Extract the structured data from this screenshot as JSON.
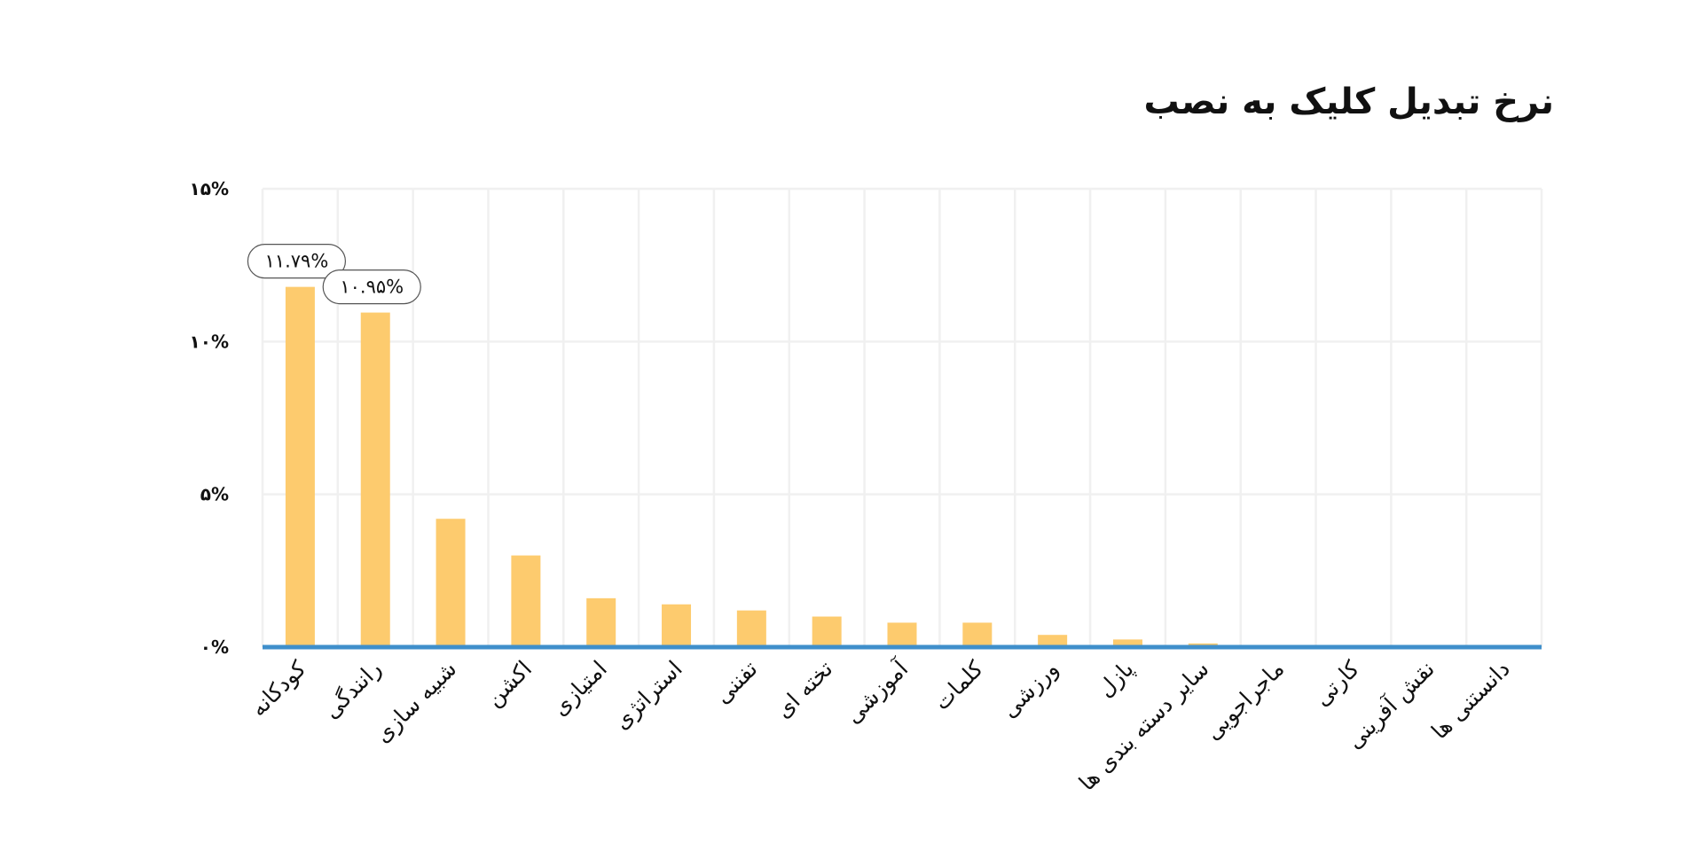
{
  "chart_data": {
    "type": "bar",
    "title": "نرخ تبدیل کلیک به نصب",
    "xlabel": "",
    "ylabel": "",
    "ylim": [
      0,
      15
    ],
    "yticks": [
      0,
      5,
      10,
      15
    ],
    "ytick_labels": [
      "۰%",
      "۵%",
      "۱۰%",
      "۱۵%"
    ],
    "grid": true,
    "legend": "none",
    "categories": [
      "کودکانه",
      "رانندگی",
      "شبیه سازی",
      "اکشن",
      "امتیازی",
      "استراتژی",
      "تفننی",
      "تخته ای",
      "آموزشی",
      "کلمات",
      "ورزشی",
      "پازل",
      "سایر دسته بندی ها",
      "ماجراجویی",
      "کارتی",
      "نقش آفرینی",
      "دانستنی ها"
    ],
    "values": [
      11.79,
      10.95,
      4.2,
      3.0,
      1.6,
      1.4,
      1.2,
      1.0,
      0.8,
      0.8,
      0.4,
      0.25,
      0.12,
      0,
      0,
      0,
      0
    ],
    "annotations": [
      {
        "category_index": 0,
        "text": "۱۱.۷۹%"
      },
      {
        "category_index": 1,
        "text": "۱۰.۹۵%"
      }
    ],
    "bar_color": "#FDCB6E",
    "baseline_color": "#3F8FCB",
    "grid_color": "#F0F0F0"
  }
}
